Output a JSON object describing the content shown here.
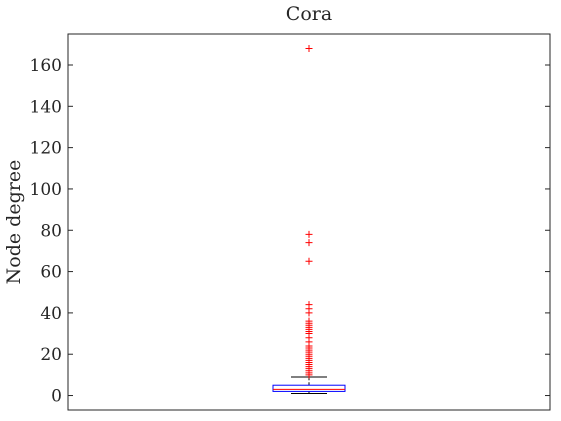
{
  "chart_data": {
    "type": "box",
    "title": "Cora",
    "xlabel": "",
    "ylabel": "Node degree",
    "ylim": [
      -7,
      175
    ],
    "yticks": [
      0,
      20,
      40,
      60,
      80,
      100,
      120,
      140,
      160
    ],
    "grid": false,
    "legend": "none",
    "box": {
      "whisker_low": 1,
      "q1": 2,
      "median": 3,
      "q3": 5,
      "whisker_high": 9
    },
    "outliers": [
      10,
      11,
      12,
      13,
      14,
      15,
      16,
      17,
      18,
      19,
      20,
      21,
      22,
      23,
      24,
      26,
      28,
      30,
      31,
      32,
      33,
      34,
      35,
      36,
      40,
      42,
      44,
      65,
      74,
      78,
      168
    ],
    "colors": {
      "box": "#0000ff",
      "median": "#ff0000",
      "whisker": "#000000",
      "outlier": "#ff0000",
      "axis": "#262626"
    }
  }
}
